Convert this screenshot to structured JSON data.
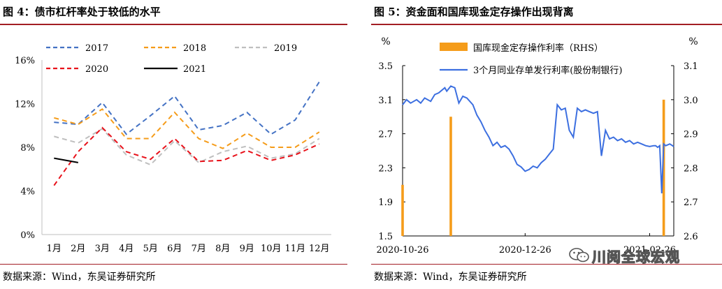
{
  "left": {
    "title": "图 4：债市杠杆率处于较低的水平",
    "source": "数据来源：Wind，东吴证券研究所"
  },
  "right": {
    "title": "图 5：资金面和国库现金定存操作出现背离",
    "source": "数据来源：Wind，东吴证券研究所"
  },
  "watermark": {
    "text": "川阅全球宏观",
    "icon": "wechat-icon"
  },
  "chart_data": [
    {
      "type": "line",
      "categories": [
        "1月",
        "2月",
        "3月",
        "4月",
        "5月",
        "6月",
        "7月",
        "8月",
        "9月",
        "10月",
        "11月",
        "12月"
      ],
      "yticks": [
        "0%",
        "4%",
        "8%",
        "12%",
        "16%"
      ],
      "ylim": [
        0,
        16
      ],
      "grid": false,
      "legend_position": "top",
      "series": [
        {
          "name": "2017",
          "color": "#4472c4",
          "dash": true,
          "values": [
            10.3,
            10.1,
            12.1,
            9.2,
            10.9,
            12.7,
            9.6,
            10.0,
            11.2,
            9.2,
            10.5,
            14.0
          ]
        },
        {
          "name": "2018",
          "color": "#f59c1a",
          "dash": true,
          "values": [
            10.7,
            10.1,
            11.5,
            8.8,
            8.8,
            11.2,
            8.8,
            7.9,
            9.3,
            8.0,
            8.0,
            9.4
          ]
        },
        {
          "name": "2019",
          "color": "#bfbfbf",
          "dash": true,
          "values": [
            9.0,
            8.4,
            9.7,
            7.3,
            6.4,
            8.6,
            6.6,
            7.6,
            8.1,
            7.0,
            7.4,
            8.8
          ]
        },
        {
          "name": "2020",
          "color": "#e8121b",
          "dash": true,
          "values": [
            4.5,
            7.6,
            9.8,
            7.6,
            6.9,
            8.8,
            6.7,
            6.8,
            7.7,
            6.8,
            7.3,
            8.3
          ]
        },
        {
          "name": "2021",
          "color": "#000000",
          "dash": false,
          "values": [
            7.0,
            6.6,
            null,
            null,
            null,
            null,
            null,
            null,
            null,
            null,
            null,
            null
          ]
        }
      ]
    },
    {
      "type": "bar",
      "x_labels": [
        "2020-10-26",
        "2020-12-26",
        "2021-02-26"
      ],
      "x_range": [
        "2020-10-26",
        "2021-03-10"
      ],
      "y_left": {
        "unit": "%",
        "ticks": [
          "1.5",
          "1.9",
          "2.3",
          "2.7",
          "3.1",
          "3.5"
        ],
        "ylim": [
          1.5,
          3.5
        ]
      },
      "y_right": {
        "unit": "%",
        "ticks": [
          "2.6",
          "2.7",
          "2.8",
          "2.9",
          "3.0",
          "3.1"
        ],
        "ylim": [
          2.6,
          3.1
        ]
      },
      "grid": false,
      "legend_position": "top-center",
      "series": [
        {
          "name": "国库现金定存操作利率（RHS）",
          "kind": "bar",
          "axis": "right",
          "color": "#f59c1a",
          "points": [
            [
              "2020-10-26",
              2.75
            ],
            [
              "2020-11-19",
              2.95
            ],
            [
              "2021-03-05",
              3.0
            ]
          ]
        },
        {
          "name": "3个月同业存单发行利率(股份制银行)",
          "kind": "line",
          "axis": "left",
          "color": "#3c6fe0",
          "points": [
            [
              "2020-10-26",
              3.04
            ],
            [
              "2020-10-28",
              3.1
            ],
            [
              "2020-10-30",
              3.06
            ],
            [
              "2020-11-02",
              3.1
            ],
            [
              "2020-11-04",
              3.06
            ],
            [
              "2020-11-06",
              3.12
            ],
            [
              "2020-11-09",
              3.08
            ],
            [
              "2020-11-11",
              3.16
            ],
            [
              "2020-11-13",
              3.18
            ],
            [
              "2020-11-16",
              3.24
            ],
            [
              "2020-11-17",
              3.2
            ],
            [
              "2020-11-19",
              3.26
            ],
            [
              "2020-11-21",
              3.24
            ],
            [
              "2020-11-23",
              3.06
            ],
            [
              "2020-11-25",
              3.14
            ],
            [
              "2020-11-27",
              3.12
            ],
            [
              "2020-11-30",
              3.04
            ],
            [
              "2020-12-02",
              2.92
            ],
            [
              "2020-12-04",
              2.84
            ],
            [
              "2020-12-06",
              2.74
            ],
            [
              "2020-12-08",
              2.66
            ],
            [
              "2020-12-10",
              2.56
            ],
            [
              "2020-12-12",
              2.6
            ],
            [
              "2020-12-14",
              2.54
            ],
            [
              "2020-12-16",
              2.56
            ],
            [
              "2020-12-18",
              2.52
            ],
            [
              "2020-12-20",
              2.44
            ],
            [
              "2020-12-22",
              2.34
            ],
            [
              "2020-12-24",
              2.31
            ],
            [
              "2020-12-26",
              2.26
            ],
            [
              "2020-12-28",
              2.28
            ],
            [
              "2020-12-30",
              2.32
            ],
            [
              "2021-01-01",
              2.3
            ],
            [
              "2021-01-03",
              2.36
            ],
            [
              "2021-01-05",
              2.4
            ],
            [
              "2021-01-07",
              2.46
            ],
            [
              "2021-01-09",
              2.52
            ],
            [
              "2021-01-11",
              3.04
            ],
            [
              "2021-01-13",
              2.98
            ],
            [
              "2021-01-15",
              3.0
            ],
            [
              "2021-01-17",
              2.74
            ],
            [
              "2021-01-19",
              2.66
            ],
            [
              "2021-01-21",
              3.0
            ],
            [
              "2021-01-23",
              2.96
            ],
            [
              "2021-01-25",
              2.98
            ],
            [
              "2021-01-27",
              2.96
            ],
            [
              "2021-01-29",
              2.94
            ],
            [
              "2021-01-31",
              2.96
            ],
            [
              "2021-02-02",
              2.44
            ],
            [
              "2021-02-04",
              2.74
            ],
            [
              "2021-02-06",
              2.64
            ],
            [
              "2021-02-08",
              2.66
            ],
            [
              "2021-02-10",
              2.62
            ],
            [
              "2021-02-12",
              2.64
            ],
            [
              "2021-02-14",
              2.6
            ],
            [
              "2021-02-16",
              2.62
            ],
            [
              "2021-02-18",
              2.58
            ],
            [
              "2021-02-20",
              2.6
            ],
            [
              "2021-02-22",
              2.58
            ],
            [
              "2021-02-24",
              2.56
            ],
            [
              "2021-02-26",
              2.55
            ],
            [
              "2021-02-28",
              2.56
            ],
            [
              "2021-03-01",
              2.56
            ],
            [
              "2021-03-02",
              2.54
            ],
            [
              "2021-03-03",
              2.56
            ],
            [
              "2021-03-04",
              2.0
            ],
            [
              "2021-03-05",
              2.58
            ],
            [
              "2021-03-06",
              2.56
            ],
            [
              "2021-03-08",
              2.58
            ],
            [
              "2021-03-10",
              2.55
            ]
          ]
        }
      ]
    }
  ]
}
